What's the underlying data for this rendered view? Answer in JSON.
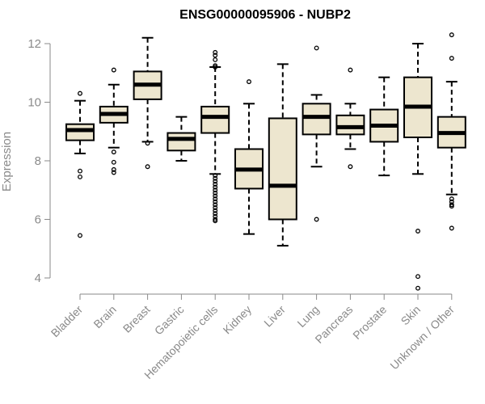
{
  "chart_data": {
    "type": "boxplot",
    "title": "ENSG00000095906 - NUBP2",
    "ylabel": "Expression",
    "xlabel": "",
    "ylim": [
      3.6,
      12.3
    ],
    "yticks": [
      4,
      6,
      8,
      10,
      12
    ],
    "grid": false,
    "box_color": "#ede6cf",
    "categories": [
      "Bladder",
      "Brain",
      "Breast",
      "Gastric",
      "Hematopoietic cells",
      "Kidney",
      "Liver",
      "Lung",
      "Pancreas",
      "Prostate",
      "Skin",
      "Unknown / Other"
    ],
    "boxes": [
      {
        "min": 8.25,
        "q1": 8.7,
        "median": 9.05,
        "q3": 9.25,
        "max": 10.05,
        "outliers": [
          10.3,
          7.65,
          7.45,
          5.45
        ]
      },
      {
        "min": 8.45,
        "q1": 9.3,
        "median": 9.6,
        "q3": 9.85,
        "max": 10.6,
        "outliers": [
          11.1,
          8.3,
          7.95,
          7.7,
          7.6
        ]
      },
      {
        "min": 8.65,
        "q1": 10.1,
        "median": 10.6,
        "q3": 11.05,
        "max": 12.2,
        "outliers": [
          8.6,
          7.8
        ]
      },
      {
        "min": 8.0,
        "q1": 8.35,
        "median": 8.75,
        "q3": 8.95,
        "max": 9.5,
        "outliers": []
      },
      {
        "min": 7.55,
        "q1": 8.95,
        "median": 9.5,
        "q3": 9.85,
        "max": 11.2,
        "outliers": [
          11.7,
          11.6,
          11.45,
          11.25,
          11.2,
          7.5,
          7.4,
          7.3,
          7.2,
          7.1,
          7.0,
          6.9,
          6.8,
          6.7,
          6.6,
          6.5,
          6.4,
          6.3,
          6.2,
          6.1,
          6.0,
          5.95
        ]
      },
      {
        "min": 5.5,
        "q1": 7.05,
        "median": 7.7,
        "q3": 8.4,
        "max": 9.95,
        "outliers": [
          10.7
        ]
      },
      {
        "min": 5.1,
        "q1": 6.0,
        "median": 7.15,
        "q3": 9.45,
        "max": 11.3,
        "outliers": []
      },
      {
        "min": 7.8,
        "q1": 8.9,
        "median": 9.5,
        "q3": 9.95,
        "max": 10.25,
        "outliers": [
          11.85,
          6.0
        ]
      },
      {
        "min": 8.4,
        "q1": 8.9,
        "median": 9.15,
        "q3": 9.55,
        "max": 9.95,
        "outliers": [
          11.1,
          7.8
        ]
      },
      {
        "min": 7.5,
        "q1": 8.65,
        "median": 9.2,
        "q3": 9.75,
        "max": 10.85,
        "outliers": []
      },
      {
        "min": 7.55,
        "q1": 8.8,
        "median": 9.85,
        "q3": 10.85,
        "max": 12.0,
        "outliers": [
          5.6,
          4.05,
          3.65
        ]
      },
      {
        "min": 6.85,
        "q1": 8.45,
        "median": 8.95,
        "q3": 9.5,
        "max": 10.7,
        "outliers": [
          12.3,
          11.5,
          6.7,
          6.6,
          6.5,
          6.45,
          5.7
        ]
      }
    ]
  }
}
